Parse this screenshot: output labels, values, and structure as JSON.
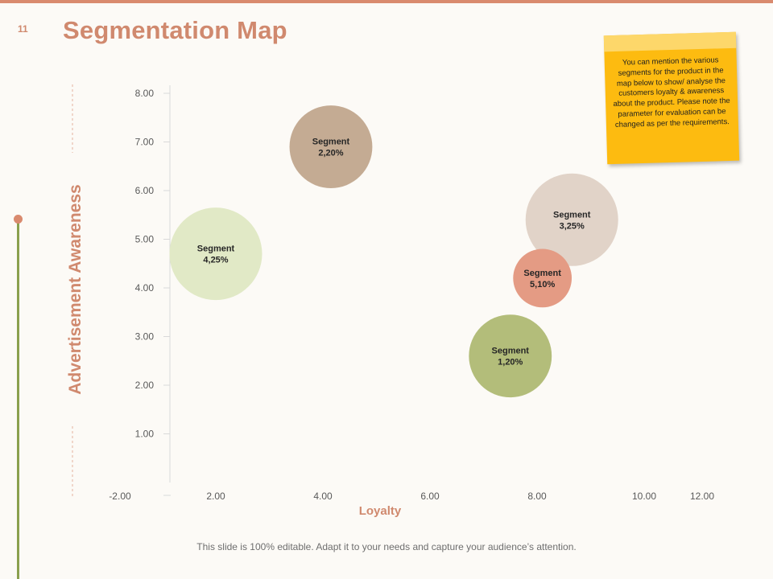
{
  "page_number": "11",
  "title": "Segmentation Map",
  "note": {
    "text": "You can mention  the various segments for the product in the map below to show/ analyse the customers loyalty & awareness about the product. Please note the parameter for evaluation can be changed as per the requirements."
  },
  "footer": "This slide is 100% editable. Adapt it to your needs and capture your audience’s attention.",
  "colors": {
    "accent": "#d0896e",
    "side_line": "#8aa04e",
    "note": "#fdbb10",
    "note_tape": "#fdd76a"
  },
  "chart_data": {
    "type": "bubble",
    "title": "",
    "xlabel": "Loyalty",
    "ylabel": "Advertisement Awareness",
    "x_ticks": [
      "-2.00",
      "2.00",
      "4.00",
      "6.00",
      "8.00",
      "10.00",
      "12.00"
    ],
    "y_ticks": [
      "1.00",
      "2.00",
      "3.00",
      "4.00",
      "5.00",
      "6.00",
      "7.00",
      "8.00"
    ],
    "ylim": [
      0,
      8.3
    ],
    "points": [
      {
        "name": "Segment 1",
        "label": "Segment\n1,20%",
        "x": 7.5,
        "y": 2.6,
        "size": 20,
        "color": "#b3bd7a"
      },
      {
        "name": "Segment 2",
        "label": "Segment\n2,20%",
        "x": 4.15,
        "y": 6.9,
        "size": 20,
        "color": "#c4ab93"
      },
      {
        "name": "Segment 3",
        "label": "Segment\n3,25%",
        "x": 8.65,
        "y": 5.4,
        "size": 25,
        "color": "#e1d3c8"
      },
      {
        "name": "Segment 4",
        "label": "Segment\n4,25%",
        "x": 2.0,
        "y": 4.7,
        "size": 25,
        "color": "#e1e9c6"
      },
      {
        "name": "Segment 5",
        "label": "Segment\n5,10%",
        "x": 8.1,
        "y": 4.2,
        "size": 10,
        "color": "#e49b84"
      }
    ]
  }
}
